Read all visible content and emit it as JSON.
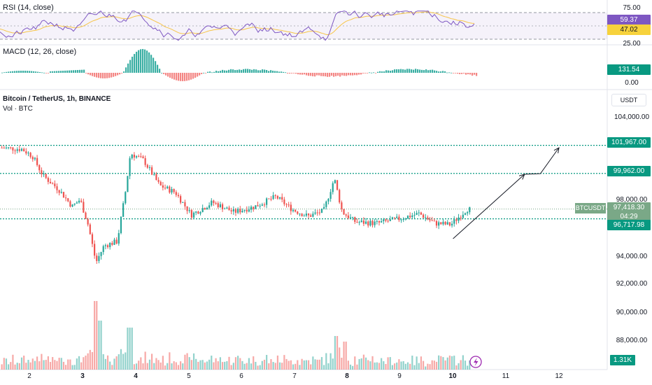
{
  "rsi": {
    "label": "RSI (14, close)",
    "levels": [
      "75.00",
      "25.00"
    ],
    "value_rsi": "59.37",
    "value_ma": "47.02",
    "colors": {
      "rsi": "#7e57c2",
      "ma": "#f7c548",
      "value_rsi_bg": "#7e57c2",
      "value_ma_bg": "#f7d23c"
    }
  },
  "macd": {
    "label": "MACD (12, 26, close)",
    "level_0": "0.00",
    "value": "131.54",
    "colors": {
      "pos": "#26a69a",
      "neg": "#ef5350"
    }
  },
  "main": {
    "title": "Bitcoin / TetherUS, 1h, BINANCE",
    "vol_label": "Vol · BTC",
    "currency_button": "USDT",
    "price_axis": [
      "104,000.00",
      "98,000.00",
      "94,000.00",
      "92,000.00",
      "90,000.00",
      "88,000.00"
    ],
    "levels": {
      "upper": "101,967.00",
      "mid": "99,962.00",
      "support": "96,717.98"
    },
    "symbol_tag": "BTCUSDT",
    "last_price": "97,418.30",
    "countdown": "04:29",
    "volume_value": "1.31K",
    "x_labels": [
      "2",
      "3",
      "4",
      "5",
      "6",
      "7",
      "8",
      "9",
      "10",
      "11",
      "12"
    ],
    "colors": {
      "up": "#26a69a",
      "down": "#ef5350",
      "level": "#089981",
      "tag_bg": "#089981",
      "symbol_bg": "#7aa887"
    }
  },
  "chart_data": {
    "type": "candlestick",
    "symbol": "BTCUSDT",
    "timeframe": "1h",
    "ylim": [
      86000,
      106000
    ],
    "x_ticks": [
      2,
      3,
      4,
      5,
      6,
      7,
      8,
      9,
      10,
      11,
      12
    ],
    "horizontal_levels": [
      101967.0,
      99962.0,
      96717.98
    ],
    "close_path": [
      {
        "day": 1.5,
        "price": 101800
      },
      {
        "day": 1.9,
        "price": 101700
      },
      {
        "day": 2.1,
        "price": 101200
      },
      {
        "day": 2.3,
        "price": 99800
      },
      {
        "day": 2.6,
        "price": 98800
      },
      {
        "day": 2.85,
        "price": 97600
      },
      {
        "day": 3.0,
        "price": 98100
      },
      {
        "day": 3.15,
        "price": 96300
      },
      {
        "day": 3.3,
        "price": 93600
      },
      {
        "day": 3.45,
        "price": 94800
      },
      {
        "day": 3.7,
        "price": 95100
      },
      {
        "day": 3.85,
        "price": 98500
      },
      {
        "day": 3.95,
        "price": 101400
      },
      {
        "day": 4.2,
        "price": 100900
      },
      {
        "day": 4.5,
        "price": 99100
      },
      {
        "day": 4.8,
        "price": 98600
      },
      {
        "day": 5.1,
        "price": 97000
      },
      {
        "day": 5.5,
        "price": 97900
      },
      {
        "day": 5.9,
        "price": 97200
      },
      {
        "day": 6.3,
        "price": 97600
      },
      {
        "day": 6.7,
        "price": 98300
      },
      {
        "day": 7.0,
        "price": 97400
      },
      {
        "day": 7.3,
        "price": 96900
      },
      {
        "day": 7.6,
        "price": 97300
      },
      {
        "day": 7.8,
        "price": 99600
      },
      {
        "day": 7.95,
        "price": 97200
      },
      {
        "day": 8.2,
        "price": 96500
      },
      {
        "day": 8.6,
        "price": 96400
      },
      {
        "day": 9.0,
        "price": 96700
      },
      {
        "day": 9.4,
        "price": 97100
      },
      {
        "day": 9.7,
        "price": 96400
      },
      {
        "day": 10.0,
        "price": 96300
      },
      {
        "day": 10.3,
        "price": 97400
      }
    ],
    "projection_arrow": [
      {
        "day": 10.0,
        "price": 95300
      },
      {
        "day": 11.35,
        "price": 99900
      },
      {
        "day": 11.65,
        "price": 99950
      },
      {
        "day": 12.0,
        "price": 101800
      }
    ]
  }
}
